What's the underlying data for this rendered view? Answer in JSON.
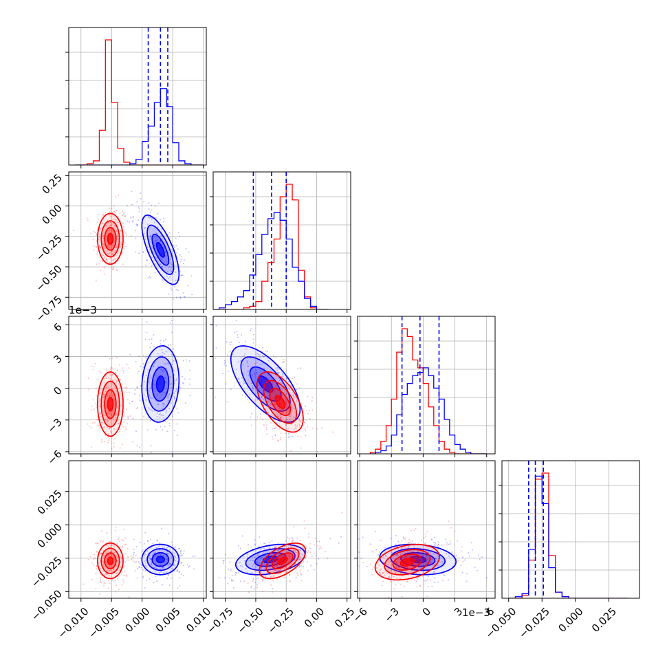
{
  "chart_data": {
    "type": "corner",
    "colors": {
      "series_a": "#ff0000",
      "series_b": "#0000ff"
    },
    "grid": true,
    "quantile_line_color": "#0000ff",
    "quantile_line_style": "dashed",
    "parameters": [
      {
        "range": [
          -0.012,
          0.0105
        ],
        "ticks": [
          -0.01,
          -0.005,
          0.0,
          0.005,
          0.01
        ],
        "tick_labels": [
          "−0.010",
          "−0.005",
          "0.000",
          "0.005",
          "0.010"
        ],
        "offset_label": ""
      },
      {
        "range": [
          -0.85,
          0.28
        ],
        "ticks": [
          -0.75,
          -0.5,
          -0.25,
          0.0,
          0.25
        ],
        "tick_labels": [
          "−0.75",
          "−0.50",
          "−0.25",
          "0.00",
          "0.25"
        ],
        "offset_label": ""
      },
      {
        "range": [
          -6.2,
          6.8
        ],
        "ticks": [
          -6,
          -3,
          0,
          3,
          6
        ],
        "tick_labels": [
          "−6",
          "−3",
          "0",
          "3",
          "6"
        ],
        "offset_label": "1e−3"
      },
      {
        "range": [
          -0.055,
          0.048
        ],
        "ticks": [
          -0.05,
          -0.025,
          0.0,
          0.025
        ],
        "tick_labels": [
          "−0.050",
          "−0.025",
          "0.000",
          "0.025"
        ],
        "offset_label": ""
      }
    ],
    "quantiles": [
      [
        0.001,
        0.003,
        0.0042
      ],
      [
        -0.52,
        -0.37,
        -0.25
      ],
      [
        -2.0,
        -0.3,
        1.5
      ],
      [
        -0.035,
        -0.03,
        -0.024
      ]
    ],
    "histograms": [
      {
        "bin_edges": [
          -0.011,
          -0.01,
          -0.009,
          -0.008,
          -0.007,
          -0.006,
          -0.005,
          -0.004,
          -0.003,
          -0.002,
          -0.001,
          0.0,
          0.001,
          0.002,
          0.003,
          0.004,
          0.005,
          0.006,
          0.007,
          0.008,
          0.009,
          0.01
        ],
        "series": [
          {
            "color": "red",
            "counts": [
              0,
              0,
              1,
              3,
              25,
              90,
              45,
              12,
              2,
              0,
              0,
              0,
              0,
              0,
              0,
              0,
              0,
              0,
              0,
              0,
              0
            ]
          },
          {
            "color": "blue",
            "counts": [
              0,
              0,
              0,
              0,
              0,
              0,
              0,
              0,
              0,
              1,
              4,
              17,
              28,
              45,
              55,
              42,
              16,
              3,
              1,
              0,
              0
            ]
          }
        ]
      },
      {
        "bin_edges": [
          -0.85,
          -0.8,
          -0.75,
          -0.7,
          -0.65,
          -0.6,
          -0.55,
          -0.5,
          -0.45,
          -0.4,
          -0.35,
          -0.3,
          -0.25,
          -0.2,
          -0.15,
          -0.1,
          -0.05,
          0.0,
          0.05,
          0.1
        ],
        "series": [
          {
            "color": "red",
            "counts": [
              0,
              0,
              0,
              0,
              0,
              1,
              2,
              5,
              18,
              30,
              45,
              72,
              80,
              70,
              25,
              8,
              1,
              0,
              0
            ]
          },
          {
            "color": "blue",
            "counts": [
              0,
              1,
              3,
              5,
              8,
              12,
              22,
              35,
              48,
              58,
              62,
              57,
              45,
              27,
              18,
              7,
              2,
              0,
              0
            ]
          }
        ]
      },
      {
        "bin_edges": [
          -5.0,
          -4.5,
          -4.0,
          -3.5,
          -3.0,
          -2.5,
          -2.0,
          -1.5,
          -1.0,
          -0.5,
          0.0,
          0.5,
          1.0,
          1.5,
          2.0,
          2.5,
          3.0,
          3.5,
          4.0,
          4.5,
          5.0,
          5.5,
          6.0
        ],
        "series": [
          {
            "color": "red",
            "counts": [
              1,
              3,
              8,
              18,
              35,
              65,
              80,
              75,
              60,
              55,
              45,
              30,
              18,
              8,
              3,
              1,
              0,
              0,
              0,
              0,
              0,
              0
            ]
          },
          {
            "color": "blue",
            "counts": [
              0,
              1,
              2,
              5,
              12,
              25,
              38,
              45,
              50,
              52,
              55,
              50,
              42,
              35,
              22,
              12,
              6,
              3,
              1,
              0,
              0,
              0
            ]
          }
        ]
      },
      {
        "bin_edges": [
          -0.05,
          -0.045,
          -0.04,
          -0.035,
          -0.03,
          -0.025,
          -0.02,
          -0.015,
          -0.01,
          -0.005,
          0.0,
          0.005,
          0.01,
          0.015,
          0.02,
          0.025,
          0.03,
          0.035,
          0.04
        ],
        "series": [
          {
            "color": "red",
            "counts": [
              0,
              0,
              2,
              25,
              78,
              82,
              28,
              4,
              1,
              0,
              0,
              0,
              0,
              0,
              0,
              0,
              0,
              0
            ]
          },
          {
            "color": "blue",
            "counts": [
              0,
              1,
              3,
              32,
              80,
              62,
              20,
              4,
              1,
              0,
              0,
              0,
              0,
              0,
              0,
              0,
              0,
              0
            ]
          }
        ]
      }
    ],
    "blobs": [
      {
        "row": 1,
        "col": 0,
        "color": "red",
        "mean": [
          -0.0052,
          -0.27
        ],
        "sd": [
          0.0011,
          0.11
        ],
        "rho": 0.0
      },
      {
        "row": 1,
        "col": 0,
        "color": "blue",
        "mean": [
          0.003,
          -0.36
        ],
        "sd": [
          0.0016,
          0.15
        ],
        "rho": -0.7
      },
      {
        "row": 2,
        "col": 0,
        "color": "red",
        "mean": [
          -0.0052,
          -1.5
        ],
        "sd": [
          0.0011,
          1.6
        ],
        "rho": 0.0
      },
      {
        "row": 2,
        "col": 0,
        "color": "blue",
        "mean": [
          0.003,
          0.4
        ],
        "sd": [
          0.0016,
          1.9
        ],
        "rho": 0.1
      },
      {
        "row": 2,
        "col": 1,
        "color": "blue",
        "mean": [
          -0.42,
          0.4
        ],
        "sd": [
          0.15,
          1.9
        ],
        "rho": -0.65
      },
      {
        "row": 2,
        "col": 1,
        "color": "red",
        "mean": [
          -0.3,
          -1.3
        ],
        "sd": [
          0.1,
          1.5
        ],
        "rho": -0.55
      },
      {
        "row": 3,
        "col": 0,
        "color": "red",
        "mean": [
          -0.0052,
          -0.027
        ],
        "sd": [
          0.0011,
          0.007
        ],
        "rho": 0.0
      },
      {
        "row": 3,
        "col": 0,
        "color": "blue",
        "mean": [
          0.003,
          -0.026
        ],
        "sd": [
          0.0016,
          0.006
        ],
        "rho": 0.0
      },
      {
        "row": 3,
        "col": 1,
        "color": "blue",
        "mean": [
          -0.38,
          -0.026
        ],
        "sd": [
          0.15,
          0.006
        ],
        "rho": 0.35
      },
      {
        "row": 3,
        "col": 1,
        "color": "red",
        "mean": [
          -0.28,
          -0.027
        ],
        "sd": [
          0.1,
          0.007
        ],
        "rho": 0.55
      },
      {
        "row": 3,
        "col": 2,
        "color": "blue",
        "mean": [
          -0.5,
          -0.026
        ],
        "sd": [
          1.9,
          0.006
        ],
        "rho": -0.15
      },
      {
        "row": 3,
        "col": 2,
        "color": "red",
        "mean": [
          -1.5,
          -0.028
        ],
        "sd": [
          1.6,
          0.007
        ],
        "rho": 0.3
      }
    ]
  }
}
